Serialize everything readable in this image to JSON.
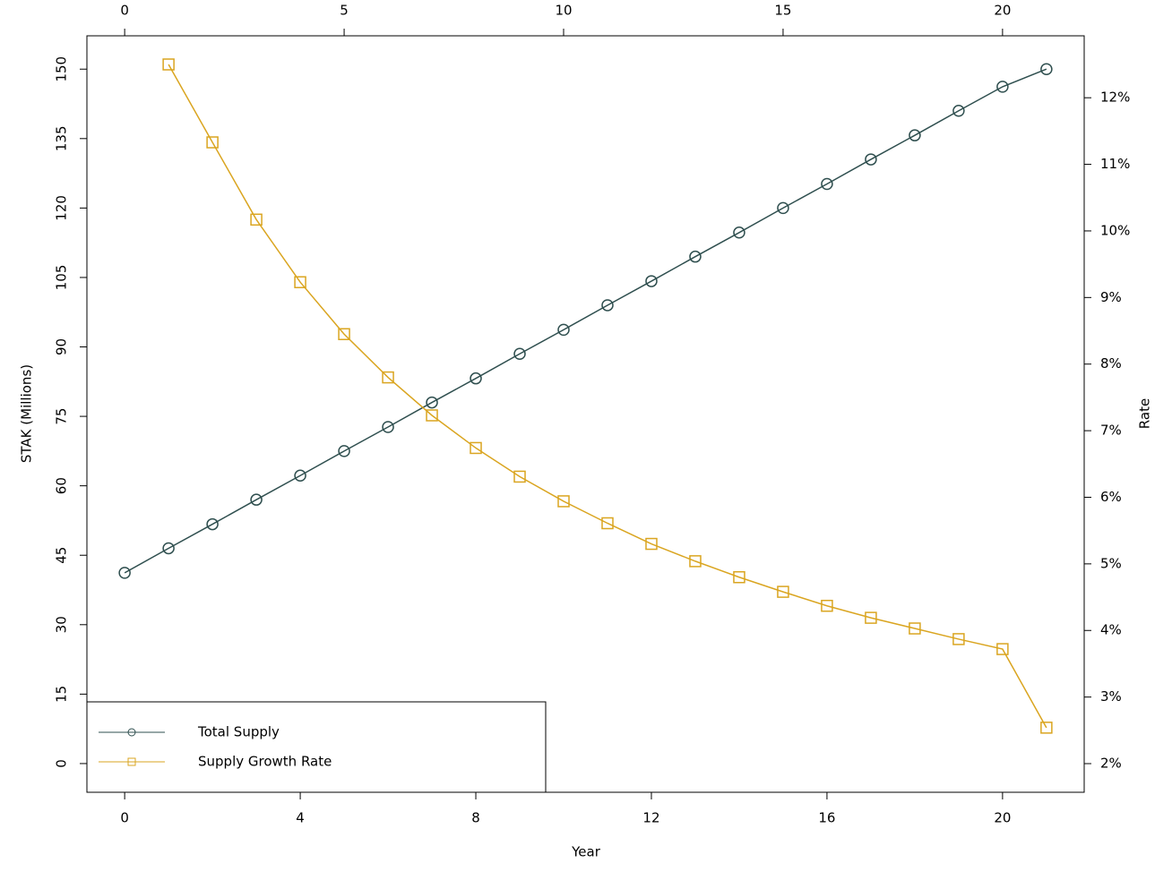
{
  "chart_data": {
    "type": "line",
    "x_label": "Year",
    "y_label": "STAK (Millions)",
    "y2_label": "Rate",
    "x": [
      0,
      1,
      2,
      3,
      4,
      5,
      6,
      7,
      8,
      9,
      10,
      11,
      12,
      13,
      14,
      15,
      16,
      17,
      18,
      19,
      20,
      21
    ],
    "series": [
      {
        "name": "Total Supply",
        "color": "#2f4f4f",
        "marker": "circle",
        "values": [
          41.2,
          46.5,
          51.7,
          57.0,
          62.2,
          67.5,
          72.7,
          78.0,
          83.2,
          88.5,
          93.7,
          99.0,
          104.2,
          109.5,
          114.7,
          120.0,
          125.2,
          130.5,
          135.7,
          141.0,
          146.2,
          150.0
        ]
      },
      {
        "name": "Supply Growth Rate",
        "color": "#daa520",
        "marker": "square",
        "axis": "y2",
        "values": [
          null,
          12.5,
          11.33,
          10.17,
          9.23,
          8.45,
          7.8,
          7.23,
          6.74,
          6.31,
          5.94,
          5.61,
          5.3,
          5.04,
          4.8,
          4.58,
          4.37,
          4.19,
          4.03,
          3.87,
          3.72,
          2.54
        ]
      }
    ],
    "xlim": [
      -0.86,
      21.86
    ],
    "xticks": [
      0,
      4,
      8,
      12,
      16,
      20
    ],
    "x2ticks": [
      0,
      5,
      10,
      15,
      20
    ],
    "ylim": [
      -6.2,
      157.2
    ],
    "yticks": [
      0,
      15,
      30,
      45,
      60,
      75,
      90,
      105,
      120,
      135,
      150
    ],
    "y2lim": [
      1.57,
      12.93
    ],
    "y2ticks": [
      {
        "value": 2,
        "label": "2%"
      },
      {
        "value": 3,
        "label": "3%"
      },
      {
        "value": 4,
        "label": "4%"
      },
      {
        "value": 5,
        "label": "5%"
      },
      {
        "value": 6,
        "label": "6%"
      },
      {
        "value": 7,
        "label": "7%"
      },
      {
        "value": 8,
        "label": "8%"
      },
      {
        "value": 9,
        "label": "9%"
      },
      {
        "value": 10,
        "label": "10%"
      },
      {
        "value": 11,
        "label": "11%"
      },
      {
        "value": 12,
        "label": "12%"
      }
    ],
    "legend": "lower left",
    "grid": false
  }
}
